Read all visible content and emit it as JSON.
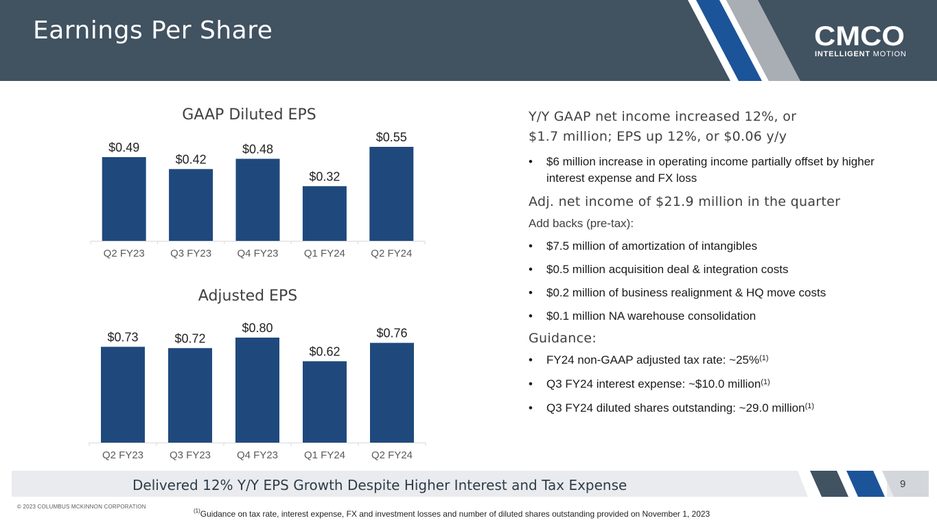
{
  "header": {
    "title": "Earnings Per Share",
    "logo_word": "CMCO",
    "logo_tagline_bold": "INTELLIGENT",
    "logo_tagline_light": " MOTION",
    "colors": {
      "header_bg": "#415261",
      "stripe_blue": "#1c549a",
      "stripe_gray": "#a8aeb4",
      "bar": "#1f497d"
    }
  },
  "chart_data": [
    {
      "type": "bar",
      "title": "GAAP Diluted EPS",
      "categories": [
        "Q2 FY23",
        "Q3 FY23",
        "Q4 FY23",
        "Q1 FY24",
        "Q2 FY24"
      ],
      "values": [
        0.49,
        0.42,
        0.48,
        0.32,
        0.55
      ],
      "labels": [
        "$0.49",
        "$0.42",
        "$0.48",
        "$0.32",
        "$0.55"
      ],
      "ylim": [
        0,
        0.55
      ]
    },
    {
      "type": "bar",
      "title": "Adjusted EPS",
      "categories": [
        "Q2 FY23",
        "Q3 FY23",
        "Q4 FY23",
        "Q1 FY24",
        "Q2 FY24"
      ],
      "values": [
        0.73,
        0.72,
        0.8,
        0.62,
        0.76
      ],
      "labels": [
        "$0.73",
        "$0.72",
        "$0.80",
        "$0.62",
        "$0.76"
      ],
      "ylim": [
        0,
        0.8
      ]
    }
  ],
  "right": {
    "h1_line1": "Y/Y GAAP net income increased 12%, or",
    "h1_line2": "$1.7 million; EPS up 12%, or $0.06 y/y",
    "b1": "$6 million increase in operating income partially offset by higher interest expense and FX loss",
    "h2": "Adj. net income of $21.9 million in the quarter",
    "addbacks_label": "Add backs (pre-tax):",
    "addbacks": [
      "$7.5 million of amortization of intangibles",
      "$0.5 million acquisition deal & integration costs",
      "$0.2 million of business realignment & HQ move costs",
      "$0.1 million NA warehouse consolidation"
    ],
    "guidance_title": "Guidance:",
    "guidance": [
      "FY24 non-GAAP adjusted tax rate: ~25%",
      "Q3 FY24 interest expense: ~$10.0 million",
      "Q3 FY24 diluted shares outstanding: ~29.0 million"
    ],
    "footnote_ref": "(1)"
  },
  "footer": {
    "tagline": "Delivered 12% Y/Y EPS Growth Despite Higher Interest and Tax Expense",
    "page_number": "9",
    "copyright": "© 2023 COLUMBUS MCKINNON CORPORATION",
    "footnote_marker": "(1)",
    "footnote": "Guidance on tax rate, interest expense, FX and investment losses and number of diluted shares outstanding provided on November 1, 2023"
  }
}
